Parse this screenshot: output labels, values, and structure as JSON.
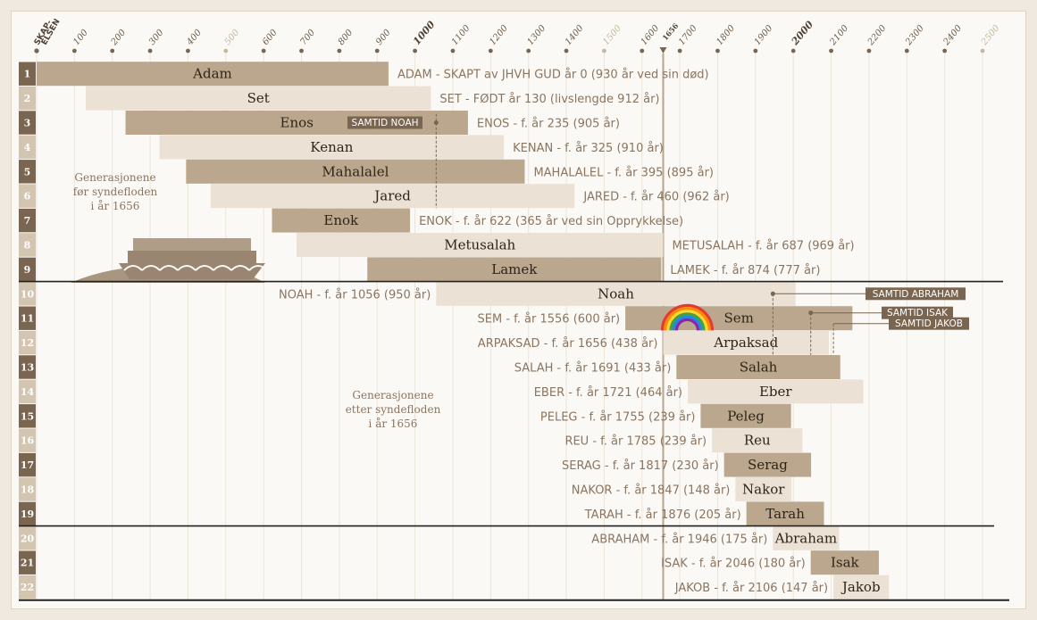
{
  "chart_data": {
    "type": "timeline",
    "x_axis": {
      "start_label": [
        "SKAP-",
        "ELSEN"
      ],
      "ticks": [
        {
          "v": 100,
          "label": "100",
          "style": "normal"
        },
        {
          "v": 200,
          "label": "200",
          "style": "normal"
        },
        {
          "v": 300,
          "label": "300",
          "style": "normal"
        },
        {
          "v": 400,
          "label": "400",
          "style": "normal"
        },
        {
          "v": 500,
          "label": "500",
          "style": "light"
        },
        {
          "v": 600,
          "label": "600",
          "style": "normal"
        },
        {
          "v": 700,
          "label": "700",
          "style": "normal"
        },
        {
          "v": 800,
          "label": "800",
          "style": "normal"
        },
        {
          "v": 900,
          "label": "900",
          "style": "normal"
        },
        {
          "v": 1000,
          "label": "1000",
          "style": "bold"
        },
        {
          "v": 1100,
          "label": "1100",
          "style": "normal"
        },
        {
          "v": 1200,
          "label": "1200",
          "style": "normal"
        },
        {
          "v": 1300,
          "label": "1300",
          "style": "normal"
        },
        {
          "v": 1400,
          "label": "1400",
          "style": "normal"
        },
        {
          "v": 1500,
          "label": "1500",
          "style": "light"
        },
        {
          "v": 1600,
          "label": "1600",
          "style": "normal"
        },
        {
          "v": 1700,
          "label": "1700",
          "style": "normal"
        },
        {
          "v": 1800,
          "label": "1800",
          "style": "normal"
        },
        {
          "v": 1900,
          "label": "1900",
          "style": "normal"
        },
        {
          "v": 2000,
          "label": "2000",
          "style": "bold"
        },
        {
          "v": 2100,
          "label": "2100",
          "style": "normal"
        },
        {
          "v": 2200,
          "label": "2200",
          "style": "normal"
        },
        {
          "v": 2300,
          "label": "2300",
          "style": "normal"
        },
        {
          "v": 2400,
          "label": "2400",
          "style": "normal"
        },
        {
          "v": 2500,
          "label": "2500",
          "style": "light"
        }
      ],
      "flood_marker": {
        "v": 1656,
        "label": "1656"
      }
    },
    "rows": [
      {
        "n": 1,
        "name": "Adam",
        "start": 0,
        "end": 930,
        "info": "ADAM - SKAPT av JHVH GUD år 0 (930 år ved sin død)",
        "info_side": "right"
      },
      {
        "n": 2,
        "name": "Set",
        "start": 130,
        "end": 1042,
        "info": "SET - FØDT år 130 (livslengde 912 år)",
        "info_side": "right"
      },
      {
        "n": 3,
        "name": "Enos",
        "start": 235,
        "end": 1140,
        "info": "ENOS - f. år 235 (905 år)",
        "info_side": "right"
      },
      {
        "n": 4,
        "name": "Kenan",
        "start": 325,
        "end": 1235,
        "info": "KENAN - f. år 325 (910 år)",
        "info_side": "right"
      },
      {
        "n": 5,
        "name": "Mahalalel",
        "start": 395,
        "end": 1290,
        "info": "MAHALALEL - f. år 395 (895 år)",
        "info_side": "right"
      },
      {
        "n": 6,
        "name": "Jared",
        "start": 460,
        "end": 1422,
        "info": "JARED - f. år 460 (962 år)",
        "info_side": "right"
      },
      {
        "n": 7,
        "name": "Enok",
        "start": 622,
        "end": 987,
        "info": "ENOK - f. år 622 (365 år ved sin Opprykkelse)",
        "info_side": "right"
      },
      {
        "n": 8,
        "name": "Metusalah",
        "start": 687,
        "end": 1656,
        "info": "METUSALAH - f. år 687 (969 år)",
        "info_side": "right"
      },
      {
        "n": 9,
        "name": "Lamek",
        "start": 874,
        "end": 1651,
        "info": "LAMEK - f. år 874 (777 år)",
        "info_side": "right"
      },
      {
        "n": 10,
        "name": "Noah",
        "start": 1056,
        "end": 2006,
        "info": "NOAH - f. år 1056 (950 år)",
        "info_side": "left"
      },
      {
        "n": 11,
        "name": "Sem",
        "start": 1556,
        "end": 2156,
        "info": "SEM - f. år 1556 (600 år)",
        "info_side": "left"
      },
      {
        "n": 12,
        "name": "Arpaksad",
        "start": 1656,
        "end": 2094,
        "info": "ARPAKSAD - f. år 1656 (438 år)",
        "info_side": "left"
      },
      {
        "n": 13,
        "name": "Salah",
        "start": 1691,
        "end": 2124,
        "info": "SALAH - f. år 1691 (433 år)",
        "info_side": "left"
      },
      {
        "n": 14,
        "name": "Eber",
        "start": 1721,
        "end": 2185,
        "info": "EBER - f. år 1721 (464 år)",
        "info_side": "left"
      },
      {
        "n": 15,
        "name": "Peleg",
        "start": 1755,
        "end": 1994,
        "info": "PELEG - f. år 1755 (239 år)",
        "info_side": "left"
      },
      {
        "n": 16,
        "name": "Reu",
        "start": 1785,
        "end": 2024,
        "info": "REU - f. år 1785 (239 år)",
        "info_side": "left"
      },
      {
        "n": 17,
        "name": "Serag",
        "start": 1817,
        "end": 2047,
        "info": "SERAG - f. år 1817 (230 år)",
        "info_side": "left"
      },
      {
        "n": 18,
        "name": "Nakor",
        "start": 1847,
        "end": 1995,
        "info": "NAKOR - f. år 1847 (148 år)",
        "info_side": "left"
      },
      {
        "n": 19,
        "name": "Tarah",
        "start": 1876,
        "end": 2081,
        "info": "TARAH - f. år 1876 (205 år)",
        "info_side": "left"
      },
      {
        "n": 20,
        "name": "Abraham",
        "start": 1946,
        "end": 2121,
        "info": "ABRAHAM - f. år 1946 (175 år)",
        "info_side": "left"
      },
      {
        "n": 21,
        "name": "Isak",
        "start": 2046,
        "end": 2226,
        "info": "ISAK - f. år 2046 (180 år)",
        "info_side": "left"
      },
      {
        "n": 22,
        "name": "Jakob",
        "start": 2106,
        "end": 2253,
        "info": "JAKOB - f. år 2106 (147 år)",
        "info_side": "left"
      }
    ],
    "notes": {
      "before_flood": [
        "Generasjonene",
        "før syndefloden",
        "i år 1656"
      ],
      "after_flood": [
        "Generasjonene",
        "etter syndefloden",
        "i år 1656"
      ]
    },
    "tags": [
      {
        "label": "SAMTID NOAH",
        "marker_year": 1056
      },
      {
        "label": "SAMTID ABRAHAM",
        "marker_year": 1946
      },
      {
        "label": "SAMTID ISAK",
        "marker_year": 2046
      },
      {
        "label": "SAMTID JAKOB",
        "marker_year": 2106
      }
    ],
    "colors": {
      "dark_bar": "#bba78e",
      "light_bar": "#ebe1d5",
      "dark_num": "#7a6550",
      "light_num": "#d4c5b1",
      "divider": "#222222",
      "marker": "#7a6550"
    }
  }
}
